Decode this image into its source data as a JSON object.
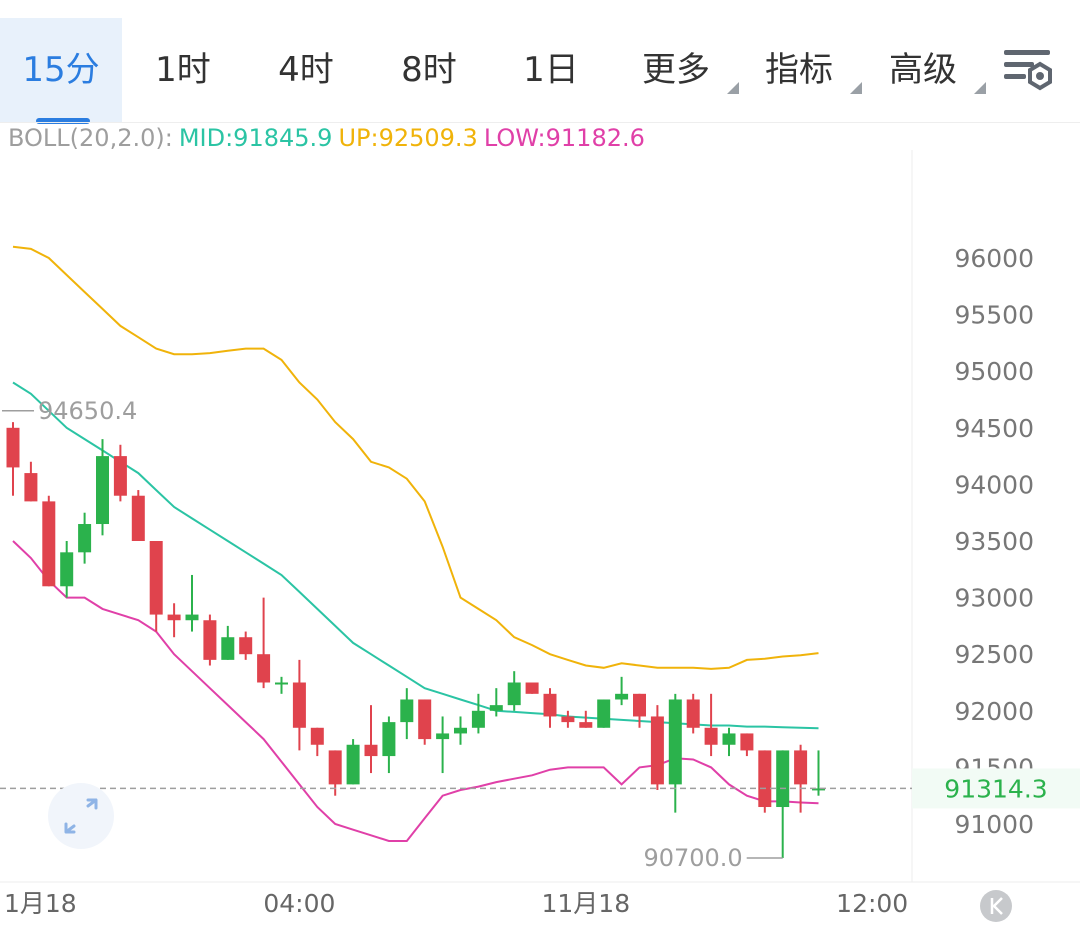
{
  "tabs": [
    {
      "label": "15分",
      "active": true,
      "dropdown": false
    },
    {
      "label": "1时",
      "active": false,
      "dropdown": false
    },
    {
      "label": "4时",
      "active": false,
      "dropdown": false
    },
    {
      "label": "8时",
      "active": false,
      "dropdown": false
    },
    {
      "label": "1日",
      "active": false,
      "dropdown": false
    },
    {
      "label": "更多",
      "active": false,
      "dropdown": true
    },
    {
      "label": "指标",
      "active": false,
      "dropdown": true
    },
    {
      "label": "高级",
      "active": false,
      "dropdown": true
    }
  ],
  "settings_icon": "chart-settings-icon",
  "indicator": {
    "name": "BOLL(20,2.0):",
    "mid": "MID:91845.9",
    "up": "UP:92509.3",
    "low": "LOW:91182.6",
    "colors": {
      "name": "#9e9e9e",
      "mid": "#2bc4a4",
      "up": "#f0b30a",
      "low": "#e040a8"
    }
  },
  "chart_data": {
    "type": "candlestick",
    "x_ticks": [
      {
        "label": "1月18",
        "candle": 0
      },
      {
        "label": "04:00",
        "candle": 16
      },
      {
        "label": "11月18",
        "candle": 32
      },
      {
        "label": "12:00",
        "candle": 48
      }
    ],
    "y_ticks": [
      96000,
      95500,
      95000,
      94500,
      94000,
      93500,
      93000,
      92500,
      92000,
      91500,
      91000
    ],
    "ylim": [
      90500,
      96700
    ],
    "current_price": "91314.3",
    "current_value": 91314.3,
    "high_label": "94650.4",
    "high_value": 94650.4,
    "low_label": "90700.0",
    "low_value": 90700.0,
    "colors": {
      "up": "#2bb24c",
      "down": "#e0434d",
      "mid": "#2bc4a4",
      "upper": "#f0b30a",
      "lower": "#e040a8",
      "price": "#2bb24c"
    },
    "candles": [
      [
        94500,
        94550,
        93900,
        94150
      ],
      [
        94100,
        94200,
        93850,
        93850
      ],
      [
        93850,
        93900,
        93100,
        93100
      ],
      [
        93100,
        93500,
        93000,
        93400
      ],
      [
        93400,
        93750,
        93300,
        93650
      ],
      [
        93650,
        94400,
        93550,
        94250
      ],
      [
        94250,
        94350,
        93850,
        93900
      ],
      [
        93900,
        93950,
        93500,
        93500
      ],
      [
        93500,
        93500,
        92700,
        92850
      ],
      [
        92850,
        92950,
        92650,
        92800
      ],
      [
        92800,
        93200,
        92700,
        92850
      ],
      [
        92800,
        92850,
        92400,
        92450
      ],
      [
        92450,
        92750,
        92450,
        92650
      ],
      [
        92650,
        92700,
        92450,
        92500
      ],
      [
        92500,
        93000,
        92200,
        92250
      ],
      [
        92250,
        92300,
        92150,
        92250
      ],
      [
        92250,
        92450,
        91650,
        91850
      ],
      [
        91850,
        91850,
        91600,
        91700
      ],
      [
        91650,
        91650,
        91250,
        91350
      ],
      [
        91350,
        91750,
        91350,
        91700
      ],
      [
        91700,
        92050,
        91450,
        91600
      ],
      [
        91600,
        91950,
        91450,
        91900
      ],
      [
        91900,
        92200,
        91750,
        92100
      ],
      [
        92100,
        92100,
        91700,
        91750
      ],
      [
        91750,
        91950,
        91450,
        91800
      ],
      [
        91800,
        91950,
        91700,
        91850
      ],
      [
        91850,
        92150,
        91800,
        92000
      ],
      [
        92000,
        92200,
        91950,
        92050
      ],
      [
        92050,
        92350,
        92000,
        92250
      ],
      [
        92250,
        92250,
        92150,
        92150
      ],
      [
        92150,
        92200,
        91850,
        91950
      ],
      [
        91950,
        92000,
        91850,
        91900
      ],
      [
        91900,
        92000,
        91850,
        91850
      ],
      [
        91850,
        92100,
        91850,
        92100
      ],
      [
        92100,
        92300,
        92050,
        92150
      ],
      [
        92150,
        92150,
        91850,
        91950
      ],
      [
        91950,
        92050,
        91300,
        91350
      ],
      [
        91350,
        92150,
        91100,
        92100
      ],
      [
        92100,
        92150,
        91800,
        91850
      ],
      [
        91850,
        92150,
        91600,
        91700
      ],
      [
        91700,
        91850,
        91600,
        91800
      ],
      [
        91800,
        91800,
        91600,
        91650
      ],
      [
        91650,
        91650,
        91100,
        91150
      ],
      [
        91150,
        91650,
        90700,
        91650
      ],
      [
        91650,
        91700,
        91100,
        91350
      ],
      [
        91300,
        91650,
        91250,
        91314.3
      ]
    ],
    "upper": [
      96100,
      96080,
      96000,
      95850,
      95700,
      95550,
      95400,
      95300,
      95200,
      95150,
      95150,
      95160,
      95180,
      95200,
      95200,
      95100,
      94900,
      94750,
      94550,
      94400,
      94200,
      94150,
      94050,
      93850,
      93450,
      93000,
      92900,
      92800,
      92650,
      92580,
      92500,
      92450,
      92400,
      92380,
      92420,
      92400,
      92380,
      92380,
      92380,
      92370,
      92380,
      92450,
      92460,
      92480,
      92490,
      92509.3
    ],
    "mid": [
      94900,
      94800,
      94650,
      94500,
      94400,
      94300,
      94200,
      94100,
      93950,
      93800,
      93700,
      93600,
      93500,
      93400,
      93300,
      93200,
      93050,
      92900,
      92750,
      92600,
      92500,
      92400,
      92300,
      92200,
      92150,
      92100,
      92050,
      92000,
      91990,
      91980,
      91970,
      91950,
      91940,
      91930,
      91920,
      91910,
      91900,
      91890,
      91880,
      91870,
      91870,
      91860,
      91860,
      91855,
      91850,
      91845.9
    ],
    "lower": [
      93500,
      93350,
      93150,
      93000,
      93000,
      92900,
      92850,
      92800,
      92700,
      92500,
      92350,
      92200,
      92050,
      91900,
      91750,
      91550,
      91350,
      91150,
      91000,
      90950,
      90900,
      90850,
      90850,
      91050,
      91250,
      91300,
      91330,
      91370,
      91400,
      91430,
      91480,
      91500,
      91500,
      91500,
      91350,
      91500,
      91520,
      91580,
      91570,
      91500,
      91350,
      91250,
      91200,
      91200,
      91190,
      91182.6
    ]
  }
}
